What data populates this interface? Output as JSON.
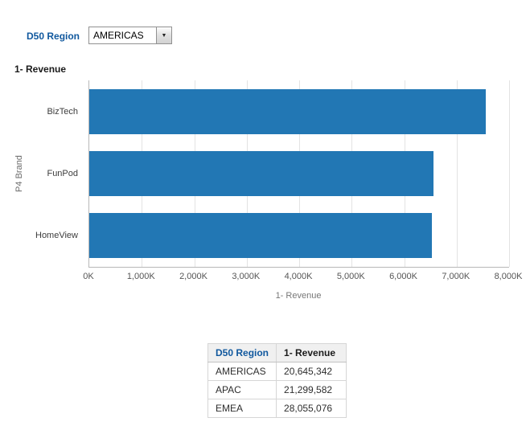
{
  "prompt": {
    "label": "D50 Region",
    "dropdown_value": "AMERICAS"
  },
  "icons": {
    "dropdown_arrow": "▼"
  },
  "chart": {
    "title": "1- Revenue",
    "y_axis_label": "P4 Brand",
    "x_axis_label": "1- Revenue"
  },
  "chart_data": {
    "type": "bar",
    "orientation": "horizontal",
    "title": "1- Revenue",
    "categories": [
      "BizTech",
      "FunPod",
      "HomeView"
    ],
    "values_k": [
      7560,
      6560,
      6525
    ],
    "xlabel": "1- Revenue",
    "ylabel": "P4 Brand",
    "xlim_k": [
      0,
      8000
    ],
    "x_ticks": [
      "0K",
      "1,000K",
      "2,000K",
      "3,000K",
      "4,000K",
      "5,000K",
      "6,000K",
      "7,000K",
      "8,000K"
    ],
    "grid": true,
    "legend": "none",
    "bar_color": "#2277b4"
  },
  "table": {
    "columns": [
      "D50 Region",
      "1- Revenue"
    ],
    "rows": [
      {
        "region": "AMERICAS",
        "revenue": "20,645,342"
      },
      {
        "region": "APAC",
        "revenue": "21,299,582"
      },
      {
        "region": "EMEA",
        "revenue": "28,055,076"
      }
    ]
  }
}
